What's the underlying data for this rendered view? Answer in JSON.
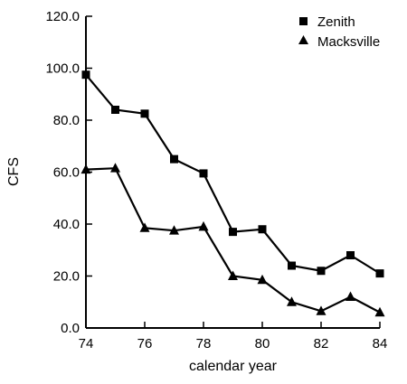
{
  "chart_data": {
    "type": "line",
    "title": "",
    "xlabel": "calendar year",
    "ylabel": "CFS",
    "xlim": [
      74,
      84
    ],
    "ylim": [
      0,
      120
    ],
    "x_ticks": [
      74,
      76,
      78,
      80,
      82,
      84
    ],
    "x_tick_labels": [
      "74",
      "76",
      "78",
      "80",
      "82",
      "84"
    ],
    "y_ticks": [
      0,
      20,
      40,
      60,
      80,
      100,
      120
    ],
    "y_tick_labels": [
      "0.0",
      "20.0",
      "40.0",
      "60.0",
      "80.0",
      "100.0",
      "120.0"
    ],
    "grid": false,
    "legend_position": "top-right",
    "x": [
      74,
      75,
      76,
      77,
      78,
      79,
      80,
      81,
      82,
      83,
      84
    ],
    "series": [
      {
        "name": "Zenith",
        "marker": "square",
        "values": [
          97.5,
          84.0,
          82.5,
          65.0,
          59.5,
          37.0,
          38.0,
          24.0,
          22.0,
          28.0,
          21.0
        ]
      },
      {
        "name": "Macksville",
        "marker": "triangle",
        "values": [
          61.0,
          61.5,
          38.5,
          37.5,
          39.0,
          20.0,
          18.5,
          10.0,
          6.5,
          12.0,
          6.0
        ]
      }
    ]
  }
}
